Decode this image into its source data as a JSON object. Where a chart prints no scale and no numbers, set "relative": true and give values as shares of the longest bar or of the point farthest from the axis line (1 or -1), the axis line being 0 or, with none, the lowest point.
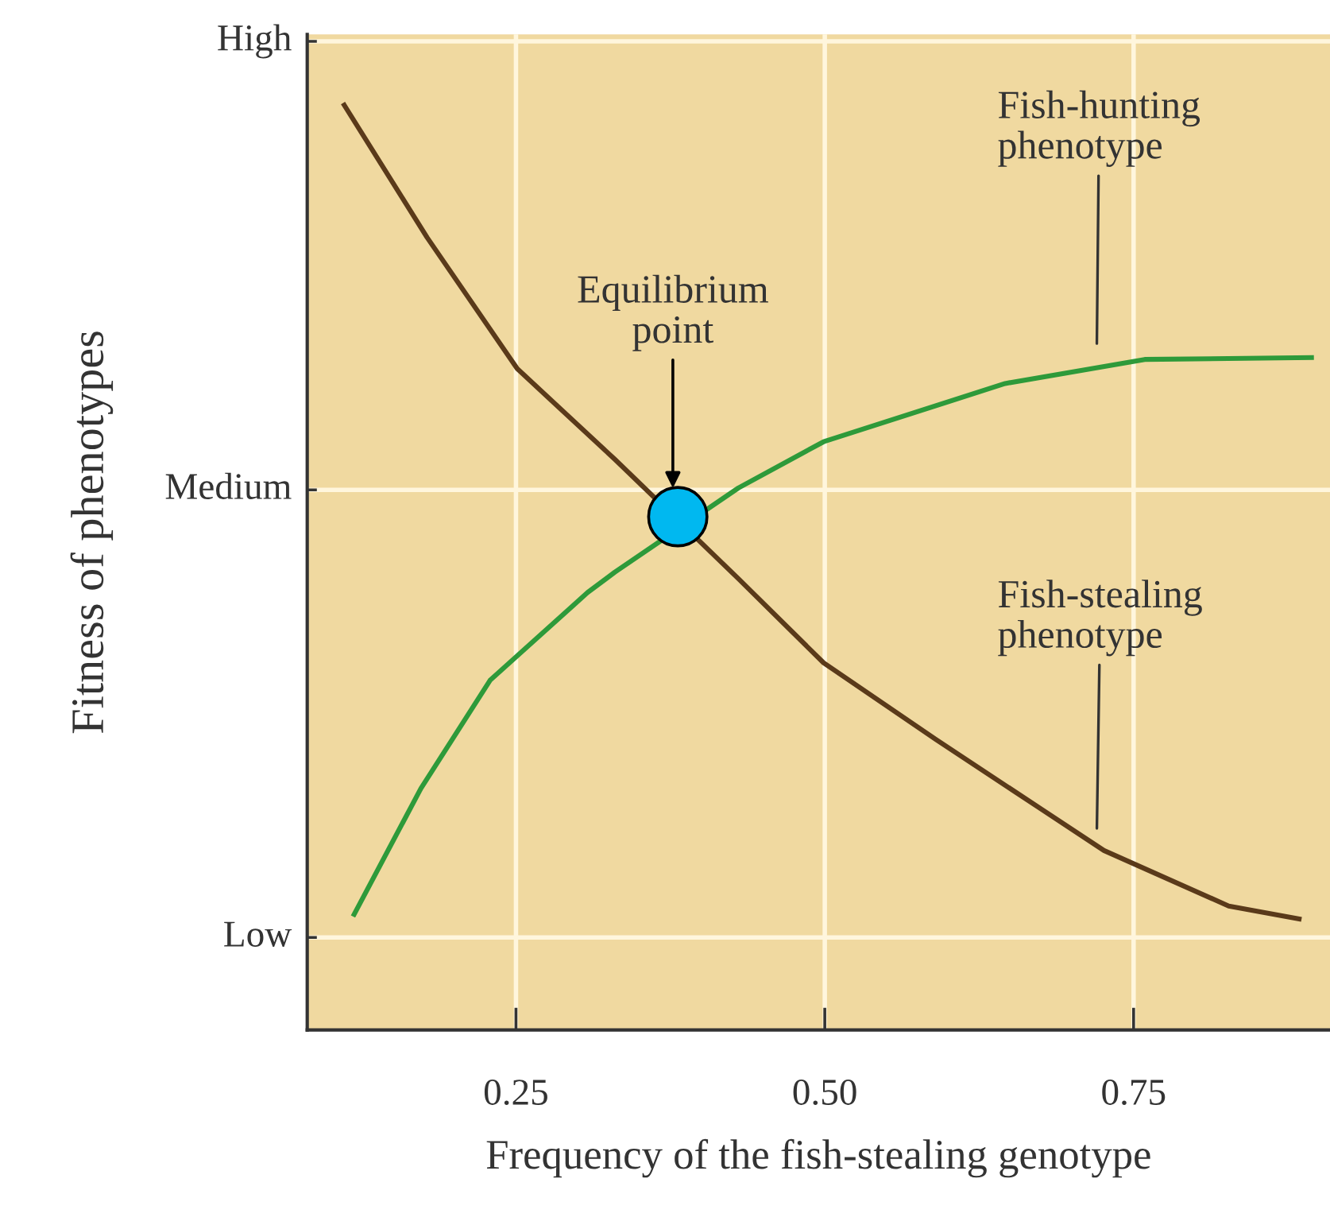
{
  "chart_data": {
    "type": "line",
    "xlabel": "Frequency of the fish-stealing genotype",
    "ylabel": "Fitness of phenotypes",
    "xlim": [
      0.081,
      0.909
    ],
    "xticks": [
      {
        "value": 0.25,
        "label": "0.25"
      },
      {
        "value": 0.5,
        "label": "0.50"
      },
      {
        "value": 0.75,
        "label": "0.75"
      }
    ],
    "relative": true,
    "grid": "x",
    "ref_lines": [
      {
        "axis": "y",
        "value": 0.1,
        "label": "Low",
        "color": "#fff6dd"
      },
      {
        "axis": "y",
        "value": 0.584,
        "label": "Medium",
        "color": "#fff6dd"
      },
      {
        "axis": "y",
        "value": 1.069,
        "label": "High",
        "color": "#fff6dd"
      }
    ],
    "series": [
      {
        "color": "#5a3a1a",
        "x": [
          0.111,
          0.178,
          0.251,
          0.33,
          0.43,
          0.499,
          0.59,
          0.726,
          0.827,
          0.884
        ],
        "values": [
          1.0,
          0.857,
          0.715,
          0.617,
          0.488,
          0.397,
          0.314,
          0.194,
          0.134,
          0.12
        ]
      },
      {
        "color": "#2e9a3a",
        "x": [
          0.119,
          0.173,
          0.229,
          0.308,
          0.33,
          0.43,
          0.499,
          0.646,
          0.759,
          0.894
        ],
        "values": [
          0.125,
          0.261,
          0.378,
          0.473,
          0.495,
          0.586,
          0.636,
          0.699,
          0.725,
          0.727
        ]
      },
      {
        "type": "scatter",
        "color": "#00b8f0",
        "marker": "circle",
        "x": [
          0.381
        ],
        "values": [
          0.555
        ]
      }
    ],
    "annotations": [
      {
        "text": "Equilibrium\npoint",
        "x": 0.377,
        "y": 0.586
      },
      "Fish-hunting\nphenotype",
      "Fish-stealing\nphenotype"
    ]
  }
}
